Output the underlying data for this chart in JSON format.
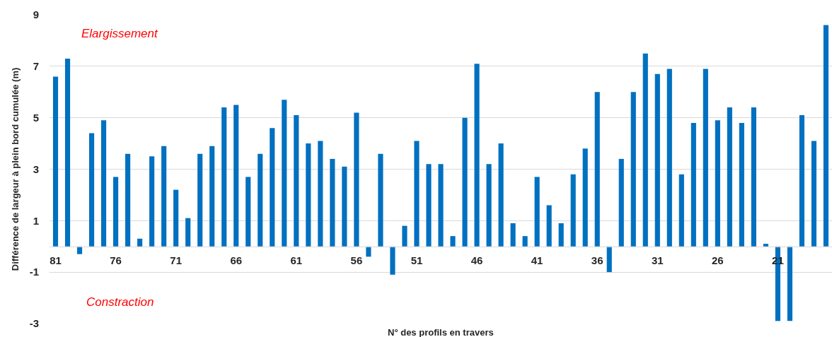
{
  "chart_data": {
    "type": "bar",
    "ylabel": "Différence de largeur à plein bord cumulée (m)",
    "xlabel": "N° des profils en travers",
    "annotations": [
      "Elargissement",
      "Constraction"
    ],
    "categories": [
      "81",
      null,
      null,
      null,
      null,
      "76",
      null,
      null,
      null,
      null,
      "71",
      null,
      null,
      null,
      null,
      "66",
      null,
      null,
      null,
      null,
      "61",
      null,
      null,
      null,
      null,
      "56",
      null,
      null,
      null,
      null,
      "51",
      null,
      null,
      null,
      null,
      "46",
      null,
      null,
      null,
      null,
      "41",
      null,
      null,
      null,
      null,
      "36",
      null,
      null,
      null,
      null,
      "31",
      null,
      null,
      null,
      null,
      "26",
      null,
      null,
      null,
      null,
      "21",
      null,
      null,
      null,
      null
    ],
    "values": [
      6.6,
      7.3,
      -0.3,
      4.4,
      4.9,
      2.7,
      3.6,
      0.3,
      3.5,
      3.9,
      2.2,
      1.1,
      3.6,
      3.9,
      5.4,
      5.5,
      2.7,
      3.6,
      4.6,
      5.7,
      5.1,
      4.0,
      4.1,
      3.4,
      3.1,
      5.2,
      -0.4,
      3.6,
      -1.1,
      0.8,
      4.1,
      3.2,
      3.2,
      0.4,
      5.0,
      7.1,
      3.2,
      4.0,
      0.9,
      0.4,
      2.7,
      1.6,
      0.9,
      2.8,
      3.8,
      6.0,
      -1.0,
      3.4,
      6.0,
      7.5,
      6.7,
      6.9,
      2.8,
      4.8,
      6.9,
      4.9,
      5.4,
      4.8,
      5.4,
      0.1,
      -2.9,
      -2.9,
      5.1,
      4.1,
      8.6
    ],
    "color": "#0070c0",
    "ylim": [
      -3,
      9
    ],
    "yticks": [
      -3,
      -1,
      1,
      3,
      5,
      7,
      9
    ],
    "grid": "y"
  }
}
